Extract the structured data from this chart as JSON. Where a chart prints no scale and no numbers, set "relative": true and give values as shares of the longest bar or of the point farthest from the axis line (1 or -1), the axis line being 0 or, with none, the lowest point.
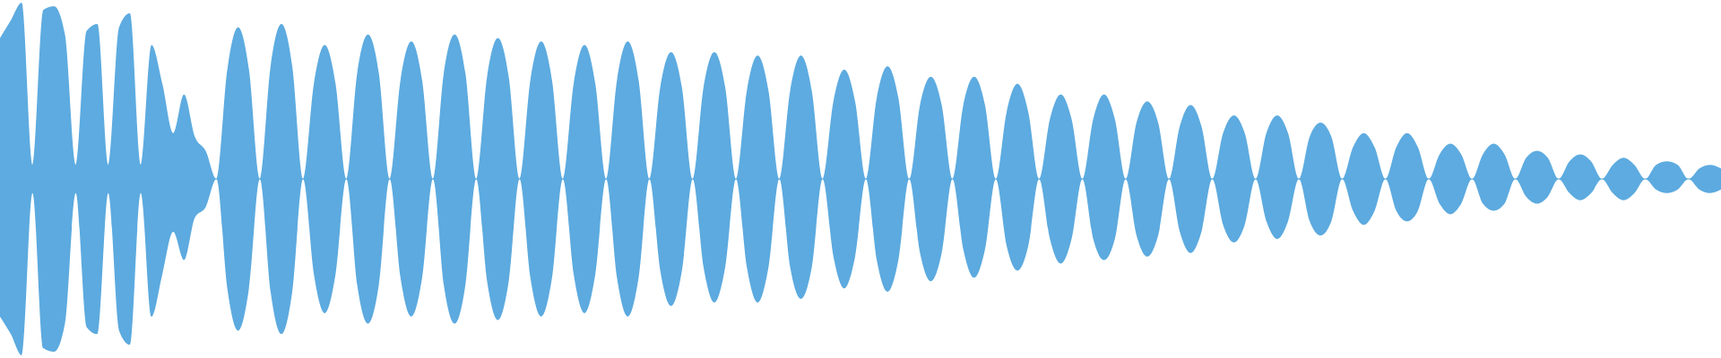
{
  "chart_data": {
    "type": "area",
    "relative": true,
    "ref_lines": [
      {
        "axis": "y",
        "value": 0,
        "color": "#5dabe0"
      }
    ],
    "categories": [
      null,
      null,
      null,
      null,
      null,
      null,
      null,
      null,
      null,
      null,
      null,
      null,
      null,
      null,
      null,
      null,
      null,
      null,
      null,
      null,
      null,
      null,
      null,
      null,
      null,
      null,
      null,
      null,
      null,
      null,
      null,
      null,
      null,
      null,
      null,
      null,
      null,
      null,
      null,
      null,
      null,
      null,
      null,
      null,
      null,
      null,
      null,
      null,
      null,
      null,
      null,
      null,
      null,
      null,
      null,
      null,
      null,
      null,
      null,
      null,
      null,
      null,
      null,
      null,
      null,
      null,
      null,
      null,
      null,
      null,
      null,
      null,
      null,
      null,
      null,
      null,
      null,
      null,
      null,
      null,
      null,
      null,
      null,
      null,
      null,
      null,
      null,
      null,
      null,
      null,
      null,
      null,
      null,
      null,
      null,
      null,
      null,
      null,
      null,
      null,
      null,
      null,
      null,
      null,
      null,
      null,
      null,
      null,
      null,
      null,
      null,
      null,
      null,
      null,
      null,
      null,
      null,
      null,
      null,
      null,
      null,
      null,
      null,
      null,
      null,
      null,
      null,
      null,
      null,
      null,
      null,
      null,
      null,
      null,
      null,
      null,
      null,
      null,
      null,
      null,
      null,
      null,
      null,
      null,
      null,
      null,
      null,
      null,
      null,
      null,
      null,
      null,
      null,
      null,
      null,
      null,
      null,
      null,
      null,
      null
    ],
    "series": [
      {
        "color": "#5dabe0",
        "values": [
          0.8,
          0.9,
          1,
          0.08,
          0.96,
          0.98,
          0.82,
          0.08,
          0.84,
          0.88,
          0.08,
          0.86,
          0.94,
          0.08,
          0.76,
          0.54,
          0.26,
          0.48,
          0.24,
          0.16,
          0,
          0.62,
          0.86,
          0.62,
          0,
          0.64,
          0.88,
          0.64,
          0,
          0.54,
          0.76,
          0.54,
          0,
          0.6,
          0.82,
          0.6,
          0,
          0.56,
          0.78,
          0.56,
          0,
          0.6,
          0.82,
          0.6,
          0,
          0.58,
          0.8,
          0.58,
          0,
          0.56,
          0.78,
          0.56,
          0,
          0.54,
          0.76,
          0.54,
          0,
          0.56,
          0.78,
          0.56,
          0,
          0.52,
          0.72,
          0.52,
          0,
          0.52,
          0.72,
          0.52,
          0,
          0.5,
          0.7,
          0.5,
          0,
          0.5,
          0.7,
          0.5,
          0,
          0.44,
          0.62,
          0.44,
          0,
          0.46,
          0.64,
          0.46,
          0,
          0.42,
          0.58,
          0.42,
          0,
          0.42,
          0.58,
          0.42,
          0,
          0.38,
          0.54,
          0.38,
          0,
          0.34,
          0.48,
          0.34,
          0,
          0.34,
          0.48,
          0.34,
          0,
          0.32,
          0.44,
          0.32,
          0,
          0.3,
          0.42,
          0.3,
          0,
          0.26,
          0.36,
          0.26,
          0,
          0.26,
          0.36,
          0.26,
          0,
          0.24,
          0.32,
          0.24,
          0,
          0.18,
          0.26,
          0.18,
          0,
          0.18,
          0.26,
          0.18,
          0,
          0.14,
          0.2,
          0.14,
          0,
          0.14,
          0.2,
          0.14,
          0,
          0.12,
          0.16,
          0.12,
          0,
          0.1,
          0.14,
          0.1,
          0,
          0.08,
          0.12,
          0.08,
          0,
          0.08,
          0.1,
          0.08,
          0,
          0.06,
          0.08,
          0.06
        ]
      },
      {
        "color": "#5caadf",
        "values": [
          -0.78,
          -0.88,
          -1,
          -0.08,
          -0.96,
          -0.98,
          -0.82,
          -0.08,
          -0.84,
          -0.88,
          -0.08,
          -0.86,
          -0.94,
          -0.08,
          -0.78,
          -0.54,
          -0.3,
          -0.46,
          -0.22,
          -0.16,
          0,
          -0.62,
          -0.86,
          -0.62,
          0,
          -0.64,
          -0.88,
          -0.64,
          0,
          -0.54,
          -0.76,
          -0.54,
          0,
          -0.6,
          -0.82,
          -0.6,
          0,
          -0.56,
          -0.78,
          -0.56,
          0,
          -0.6,
          -0.82,
          -0.6,
          0,
          -0.58,
          -0.8,
          -0.58,
          0,
          -0.56,
          -0.78,
          -0.56,
          0,
          -0.54,
          -0.76,
          -0.54,
          0,
          -0.56,
          -0.78,
          -0.56,
          0,
          -0.52,
          -0.72,
          -0.52,
          0,
          -0.5,
          -0.7,
          -0.5,
          0,
          -0.5,
          -0.7,
          -0.5,
          0,
          -0.5,
          -0.68,
          -0.5,
          0,
          -0.44,
          -0.62,
          -0.44,
          0,
          -0.46,
          -0.64,
          -0.46,
          0,
          -0.42,
          -0.58,
          -0.42,
          0,
          -0.4,
          -0.56,
          -0.4,
          0,
          -0.38,
          -0.52,
          -0.38,
          0,
          -0.34,
          -0.48,
          -0.34,
          0,
          -0.34,
          -0.46,
          -0.34,
          0,
          -0.32,
          -0.44,
          -0.32,
          0,
          -0.3,
          -0.42,
          -0.3,
          0,
          -0.26,
          -0.36,
          -0.26,
          0,
          -0.24,
          -0.34,
          -0.24,
          0,
          -0.24,
          -0.32,
          -0.24,
          0,
          -0.18,
          -0.26,
          -0.18,
          0,
          -0.18,
          -0.24,
          -0.18,
          0,
          -0.14,
          -0.2,
          -0.14,
          0,
          -0.14,
          -0.18,
          -0.14,
          0,
          -0.1,
          -0.14,
          -0.1,
          0,
          -0.08,
          -0.12,
          -0.08,
          0,
          -0.08,
          -0.12,
          -0.08,
          0,
          -0.06,
          -0.08,
          -0.06,
          0,
          -0.06,
          -0.08,
          -0.06
        ]
      }
    ]
  }
}
